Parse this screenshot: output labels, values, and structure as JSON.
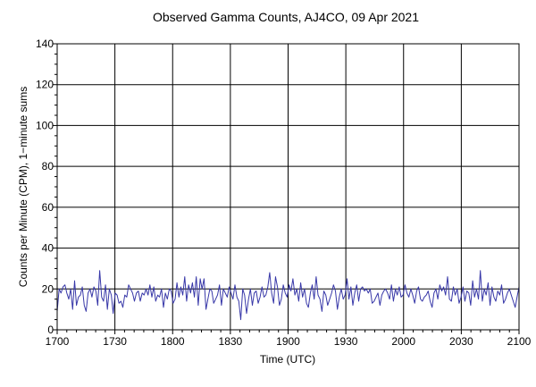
{
  "chart_data": {
    "type": "line",
    "title": "Observed Gamma Counts, AJ4CO, 09 Apr 2021",
    "xlabel": "Time (UTC)",
    "ylabel": "Counts per Minute (CPM), 1−minute sums",
    "xlim_minutes": [
      0,
      240
    ],
    "ylim": [
      0,
      140
    ],
    "x_ticks": [
      "1700",
      "1730",
      "1800",
      "1830",
      "1900",
      "1930",
      "2000",
      "2030",
      "2100"
    ],
    "y_ticks": [
      "0",
      "20",
      "40",
      "60",
      "80",
      "100",
      "120",
      "140"
    ],
    "grid": true,
    "line_color": "#3838a8",
    "series": [
      {
        "values": [
          9,
          20,
          18,
          21,
          22,
          18,
          15,
          20,
          10,
          24,
          12,
          16,
          17,
          21,
          12,
          9,
          18,
          20,
          16,
          21,
          19,
          12,
          29,
          16,
          14,
          22,
          10,
          20,
          17,
          8,
          18,
          17,
          13,
          14,
          11,
          17,
          16,
          22,
          20,
          18,
          14,
          18,
          19,
          14,
          18,
          17,
          20,
          17,
          22,
          16,
          21,
          14,
          17,
          16,
          20,
          11,
          18,
          15,
          20,
          19,
          13,
          15,
          23,
          16,
          21,
          17,
          26,
          14,
          22,
          18,
          23,
          16,
          26,
          12,
          25,
          20,
          25,
          10,
          15,
          20,
          19,
          13,
          15,
          17,
          22,
          12,
          20,
          18,
          16,
          21,
          18,
          15,
          22,
          16,
          14,
          5,
          20,
          17,
          8,
          15,
          20,
          12,
          18,
          19,
          13,
          16,
          21,
          16,
          17,
          21,
          28,
          18,
          13,
          26,
          21,
          12,
          15,
          22,
          18,
          16,
          22,
          19,
          25,
          17,
          20,
          14,
          23,
          16,
          20,
          13,
          11,
          18,
          22,
          15,
          26,
          17,
          15,
          9,
          19,
          17,
          12,
          15,
          18,
          22,
          19,
          10,
          16,
          20,
          15,
          17,
          25,
          15,
          21,
          12,
          18,
          22,
          14,
          20,
          21,
          19,
          20,
          18,
          20,
          13,
          14,
          16,
          18,
          12,
          17,
          19,
          20,
          18,
          15,
          22,
          14,
          20,
          17,
          21,
          16,
          17,
          22,
          18,
          16,
          20,
          17,
          13,
          19,
          21,
          15,
          14,
          16,
          17,
          19,
          14,
          11,
          18,
          20,
          15,
          22,
          19,
          21,
          17,
          26,
          15,
          14,
          21,
          17,
          20,
          13,
          16,
          21,
          14,
          19,
          18,
          12,
          24,
          16,
          20,
          15,
          29,
          14,
          20,
          17,
          23,
          12,
          21,
          16,
          14,
          19,
          17,
          22,
          13,
          15,
          18,
          20,
          17,
          14,
          11,
          16,
          21
        ]
      }
    ]
  }
}
